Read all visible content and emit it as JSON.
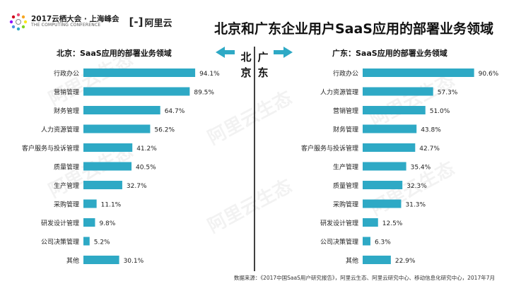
{
  "header": {
    "summit_line1": "2017云栖大会 · 上海峰会",
    "summit_line2": "THE COMPUTING CONFERENCE",
    "aliyun_bracket": "[-]",
    "aliyun_name": "阿里云",
    "title": "北京和广东企业用户SaaS应用的部署业务领域"
  },
  "watermark": "阿里云生态",
  "divider": {
    "left_region": "北京",
    "right_region": "广东"
  },
  "colors": {
    "bar": "#2ea9c5",
    "divider": "#111111",
    "arrow": "#2ea9c5"
  },
  "chart_data": [
    {
      "type": "bar",
      "orientation": "horizontal",
      "title": "北京：SaaS应用的部署业务领域",
      "categories": [
        "行政办公",
        "营销管理",
        "财务管理",
        "人力资源管理",
        "客户服务与投诉管理",
        "质量管理",
        "生产管理",
        "采购管理",
        "研发设计管理",
        "公司决策管理",
        "其他"
      ],
      "values": [
        94.1,
        89.5,
        64.7,
        56.2,
        41.2,
        40.5,
        32.7,
        11.1,
        9.8,
        5.2,
        30.1
      ],
      "labels": [
        "94.1%",
        "89.5%",
        "64.7%",
        "56.2%",
        "41.2%",
        "40.5%",
        "32.7%",
        "11.1%",
        "9.8%",
        "5.2%",
        "30.1%"
      ],
      "xlim": [
        0,
        100
      ]
    },
    {
      "type": "bar",
      "orientation": "horizontal",
      "title": "广东：SaaS应用的部署业务领域",
      "categories": [
        "行政办公",
        "人力资源管理",
        "营销管理",
        "财务管理",
        "客户服务与投诉管理",
        "生产管理",
        "质量管理",
        "采购管理",
        "研发设计管理",
        "公司决策管理",
        "其他"
      ],
      "values": [
        90.6,
        57.3,
        51.0,
        43.8,
        42.7,
        35.4,
        32.3,
        31.3,
        12.5,
        6.3,
        22.9
      ],
      "labels": [
        "90.6%",
        "57.3%",
        "51.0%",
        "43.8%",
        "42.7%",
        "35.4%",
        "32.3%",
        "31.3%",
        "12.5%",
        "6.3%",
        "22.9%"
      ],
      "xlim": [
        0,
        100
      ]
    }
  ],
  "footer": {
    "source": "数据来源：《2017中国SaaS用户研究报告》，阿里云生态、阿里云研究中心、移动信息化研究中心，2017年7月"
  }
}
